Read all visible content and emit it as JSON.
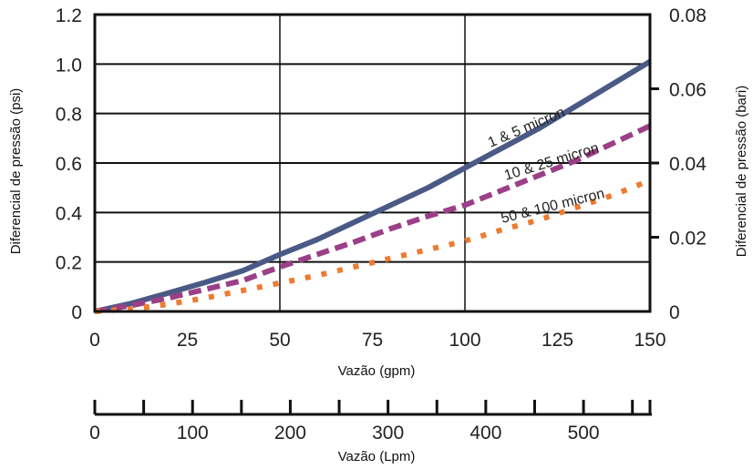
{
  "chart_data": {
    "type": "line",
    "xlabel": "Vazão (gpm)",
    "ylabel": "Diferencial de pressão (psi)",
    "y2label": "Diferencial de pressão (bari)",
    "x2label": "Vazão (Lpm)",
    "xlim": [
      0,
      150
    ],
    "ylim": [
      0,
      1.2
    ],
    "y2lim": [
      0,
      0.08
    ],
    "x2lim": [
      0,
      568
    ],
    "xticks": [
      "0",
      "25",
      "50",
      "75",
      "100",
      "125",
      "150"
    ],
    "yticks": [
      "0",
      "0.2",
      "0.4",
      "0.6",
      "0.8",
      "1.0",
      "1.2"
    ],
    "y2ticks": [
      "0",
      "0.02",
      "0.04",
      "0.06",
      "0.08"
    ],
    "x2ticks": [
      "0",
      "100",
      "200",
      "300",
      "400",
      "500"
    ],
    "grid": true,
    "series": [
      {
        "name": "1 & 5 micron",
        "color": "#4a5a86",
        "style": "solid",
        "x": [
          0,
          10,
          20,
          30,
          40,
          50,
          60,
          70,
          80,
          90,
          100,
          110,
          120,
          130,
          140,
          150
        ],
        "y": [
          0,
          0.033,
          0.075,
          0.118,
          0.165,
          0.23,
          0.29,
          0.36,
          0.43,
          0.5,
          0.58,
          0.66,
          0.74,
          0.83,
          0.92,
          1.01
        ]
      },
      {
        "name": "10 & 25 micron",
        "color": "#9b3f86",
        "style": "dashed",
        "x": [
          0,
          10,
          20,
          30,
          40,
          50,
          60,
          70,
          80,
          90,
          100,
          110,
          120,
          130,
          140,
          150
        ],
        "y": [
          0,
          0.025,
          0.055,
          0.09,
          0.125,
          0.18,
          0.23,
          0.28,
          0.335,
          0.385,
          0.43,
          0.49,
          0.55,
          0.61,
          0.68,
          0.75
        ]
      },
      {
        "name": "50 & 100 micron",
        "color": "#ee7b30",
        "style": "dotted",
        "x": [
          0,
          10,
          20,
          30,
          40,
          50,
          60,
          70,
          80,
          90,
          100,
          110,
          120,
          130,
          140,
          150
        ],
        "y": [
          0,
          0.01,
          0.03,
          0.055,
          0.085,
          0.115,
          0.145,
          0.18,
          0.215,
          0.25,
          0.285,
          0.33,
          0.37,
          0.42,
          0.47,
          0.53
        ]
      }
    ]
  }
}
